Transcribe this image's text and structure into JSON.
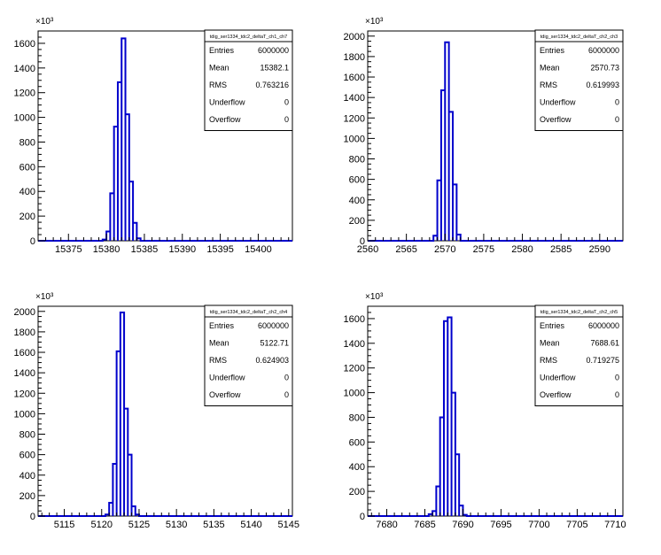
{
  "exponent_label": "×10³",
  "stats_labels": [
    "Entries",
    "Mean",
    "RMS",
    "Underflow",
    "Overflow"
  ],
  "colors": {
    "histogram": "#0000cc",
    "axis": "#000000",
    "frame": "#000000"
  },
  "chart_data": [
    {
      "type": "bar",
      "histogram": true,
      "title": "tdig_ser1334_tdc2_deltaT_ch1_ch7",
      "stats": [
        "6000000",
        "15382.1",
        "0.763216",
        "0",
        "0"
      ],
      "xlim": [
        15371,
        15404.5
      ],
      "ylim": [
        0,
        1700
      ],
      "xticks": [
        15375,
        15380,
        15385,
        15390,
        15395,
        15400
      ],
      "xtick_labels": [
        "15375",
        "15380",
        "15385",
        "15390",
        "15395",
        "15400"
      ],
      "yticks": [
        0,
        200,
        400,
        600,
        800,
        1000,
        1200,
        1400,
        1600
      ],
      "ytick_labels": [
        "0",
        "200",
        "400",
        "600",
        "800",
        "1000",
        "1200",
        "1400",
        "1600"
      ],
      "bin_width": 0.5,
      "bins": [
        [
          15379.5,
          10
        ],
        [
          15380,
          75
        ],
        [
          15380.5,
          385
        ],
        [
          15381,
          925
        ],
        [
          15381.5,
          1285
        ],
        [
          15382,
          1640
        ],
        [
          15382.5,
          1025
        ],
        [
          15383,
          480
        ],
        [
          15383.5,
          145
        ],
        [
          15384,
          20
        ]
      ]
    },
    {
      "type": "bar",
      "histogram": true,
      "title": "tdig_ser1334_tdc2_deltaT_ch2_ch3",
      "stats": [
        "6000000",
        "2570.73",
        "0.619993",
        "0",
        "0"
      ],
      "xlim": [
        2560,
        2593
      ],
      "ylim": [
        0,
        2050
      ],
      "xticks": [
        2560,
        2565,
        2570,
        2575,
        2580,
        2585,
        2590
      ],
      "xtick_labels": [
        "2560",
        "2565",
        "2570",
        "2575",
        "2580",
        "2585",
        "2590"
      ],
      "yticks": [
        0,
        200,
        400,
        600,
        800,
        1000,
        1200,
        1400,
        1600,
        1800,
        2000
      ],
      "ytick_labels": [
        "0",
        "200",
        "400",
        "600",
        "800",
        "1000",
        "1200",
        "1400",
        "1600",
        "1800",
        "2000"
      ],
      "bin_width": 0.5,
      "bins": [
        [
          2568.5,
          50
        ],
        [
          2569,
          590
        ],
        [
          2569.5,
          1470
        ],
        [
          2570,
          1940
        ],
        [
          2570.5,
          1260
        ],
        [
          2571,
          550
        ],
        [
          2571.5,
          60
        ]
      ]
    },
    {
      "type": "bar",
      "histogram": true,
      "title": "tdig_ser1334_tdc2_deltaT_ch2_ch4",
      "stats": [
        "6000000",
        "5122.71",
        "0.624903",
        "0",
        "0"
      ],
      "xlim": [
        5111.5,
        5145.5
      ],
      "ylim": [
        0,
        2050
      ],
      "xticks": [
        5115,
        5120,
        5125,
        5130,
        5135,
        5140,
        5145
      ],
      "xtick_labels": [
        "5115",
        "5120",
        "5125",
        "5130",
        "5135",
        "5140",
        "5145"
      ],
      "yticks": [
        0,
        200,
        400,
        600,
        800,
        1000,
        1200,
        1400,
        1600,
        1800,
        2000
      ],
      "ytick_labels": [
        "0",
        "200",
        "400",
        "600",
        "800",
        "1000",
        "1200",
        "1400",
        "1600",
        "1800",
        "2000"
      ],
      "bin_width": 0.5,
      "bins": [
        [
          5120.5,
          15
        ],
        [
          5121,
          130
        ],
        [
          5121.5,
          510
        ],
        [
          5122,
          1610
        ],
        [
          5122.5,
          1990
        ],
        [
          5123,
          1050
        ],
        [
          5123.5,
          600
        ],
        [
          5124,
          95
        ],
        [
          5124.5,
          15
        ]
      ]
    },
    {
      "type": "bar",
      "histogram": true,
      "title": "tdig_ser1334_tdc2_deltaT_ch2_ch5",
      "stats": [
        "6000000",
        "7688.61",
        "0.719275",
        "0",
        "0"
      ],
      "xlim": [
        7677.5,
        7711
      ],
      "ylim": [
        0,
        1700
      ],
      "xticks": [
        7680,
        7685,
        7690,
        7695,
        7700,
        7705,
        7710
      ],
      "xtick_labels": [
        "7680",
        "7685",
        "7690",
        "7695",
        "7700",
        "7705",
        "7710"
      ],
      "yticks": [
        0,
        200,
        400,
        600,
        800,
        1000,
        1200,
        1400,
        1600
      ],
      "ytick_labels": [
        "0",
        "200",
        "400",
        "600",
        "800",
        "1000",
        "1200",
        "1400",
        "1600"
      ],
      "bin_width": 0.5,
      "bins": [
        [
          7685.5,
          15
        ],
        [
          7686,
          40
        ],
        [
          7686.5,
          240
        ],
        [
          7687,
          800
        ],
        [
          7687.5,
          1580
        ],
        [
          7688,
          1610
        ],
        [
          7688.5,
          1000
        ],
        [
          7689,
          500
        ],
        [
          7689.5,
          85
        ],
        [
          7690,
          10
        ]
      ]
    }
  ]
}
